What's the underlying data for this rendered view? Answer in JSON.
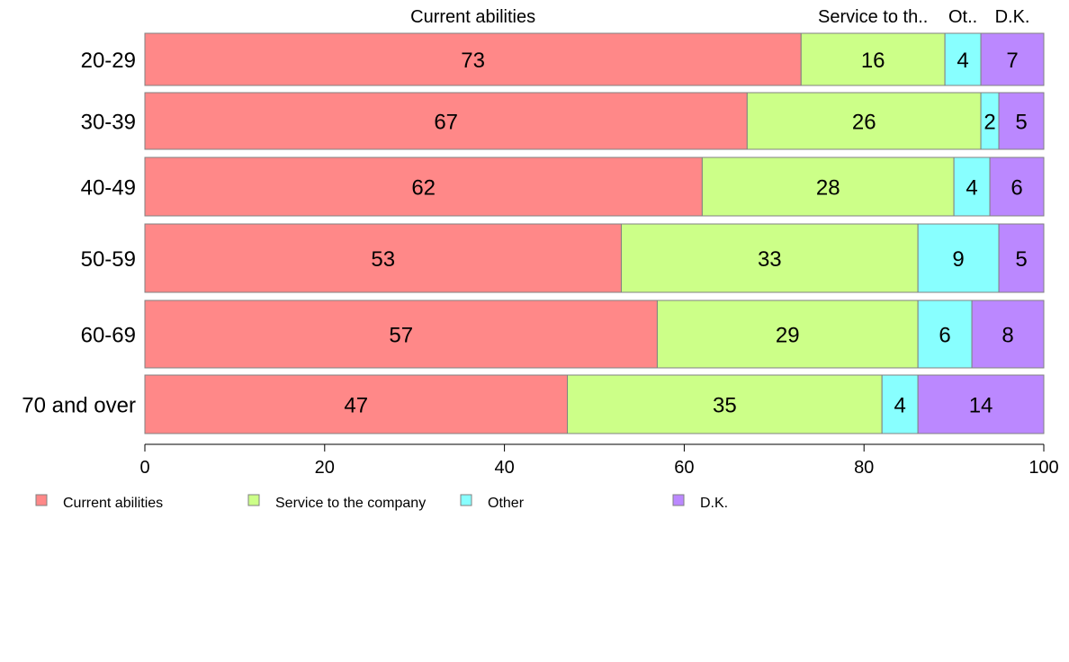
{
  "chart_data": {
    "type": "bar",
    "orientation": "horizontal",
    "stacked": true,
    "categories": [
      "20-29",
      "30-39",
      "40-49",
      "50-59",
      "60-69",
      "70 and over"
    ],
    "series": [
      {
        "name": "Current abilities",
        "color": "#ff8888",
        "values": [
          73,
          67,
          62,
          53,
          57,
          47
        ]
      },
      {
        "name": "Service to the company",
        "color": "#ccff88",
        "values": [
          16,
          26,
          28,
          33,
          29,
          35
        ]
      },
      {
        "name": "Other",
        "color": "#88ffff",
        "values": [
          4,
          2,
          4,
          9,
          6,
          4
        ]
      },
      {
        "name": "D.K.",
        "color": "#bb88ff",
        "values": [
          7,
          5,
          6,
          5,
          8,
          14
        ]
      }
    ],
    "top_labels": [
      "Current abilities",
      "Service to th..",
      "Ot..",
      "D.K."
    ],
    "xlim": [
      0,
      100
    ],
    "xticks": [
      0,
      20,
      40,
      60,
      80,
      100
    ],
    "grid": false,
    "legend_position": "bottom-left"
  }
}
